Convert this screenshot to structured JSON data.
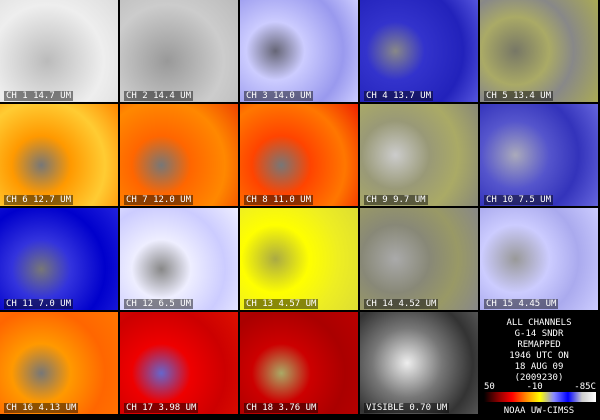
{
  "panels": [
    {
      "label": "CH 1 14.7 UM"
    },
    {
      "label": "CH 2 14.4 UM"
    },
    {
      "label": "CH 3 14.0 UM"
    },
    {
      "label": "CH 4 13.7 UM"
    },
    {
      "label": "CH 5 13.4 UM"
    },
    {
      "label": "CH 6 12.7 UM"
    },
    {
      "label": "CH 7 12.0 UM"
    },
    {
      "label": "CH 8 11.0 UM"
    },
    {
      "label": "CH 9 9.7 UM"
    },
    {
      "label": "CH 10 7.5 UM"
    },
    {
      "label": "CH 11 7.0 UM"
    },
    {
      "label": "CH 12 6.5 UM"
    },
    {
      "label": "CH 13 4.57 UM"
    },
    {
      "label": "CH 14 4.52 UM"
    },
    {
      "label": "CH 15 4.45 UM"
    },
    {
      "label": "CH 16 4.13 UM"
    },
    {
      "label": "CH 17 3.98 UM"
    },
    {
      "label": "CH 18 3.76 UM"
    },
    {
      "label": "VISIBLE 0.70 UM"
    }
  ],
  "info": {
    "lines": [
      "ALL CHANNELS",
      "G-14 SNDR",
      "REMAPPED",
      "1946 UTC ON",
      "18 AUG 09",
      "(2009230)"
    ]
  },
  "colorbar": {
    "labels": [
      "50",
      "-10",
      "-85C"
    ]
  },
  "credit": "NOAA UW-CIMSS"
}
